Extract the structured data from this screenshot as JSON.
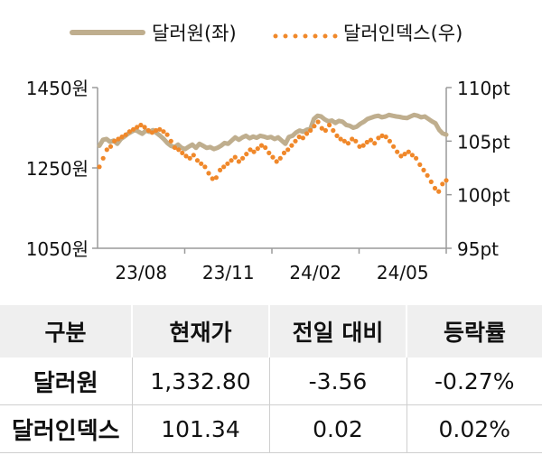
{
  "chart_data": {
    "type": "line",
    "x_ticks": [
      "23/08",
      "23/11",
      "24/02",
      "24/05"
    ],
    "y_left": {
      "ticks": [
        "1450원",
        "1250원",
        "1050원"
      ],
      "range": [
        1050,
        1450
      ]
    },
    "y_right": {
      "ticks": [
        "110pt",
        "105pt",
        "100pt",
        "95pt"
      ],
      "range": [
        95,
        110
      ]
    },
    "legend_position": "top",
    "series": [
      {
        "name": "달러원(좌)",
        "axis": "left",
        "color": "#bfae8e",
        "style": "solid",
        "values": [
          1305,
          1320,
          1322,
          1315,
          1318,
          1310,
          1322,
          1328,
          1335,
          1340,
          1345,
          1340,
          1335,
          1343,
          1340,
          1344,
          1337,
          1330,
          1322,
          1312,
          1305,
          1302,
          1308,
          1300,
          1297,
          1303,
          1308,
          1300,
          1310,
          1305,
          1300,
          1302,
          1297,
          1300,
          1305,
          1312,
          1310,
          1318,
          1326,
          1320,
          1326,
          1330,
          1324,
          1328,
          1325,
          1330,
          1328,
          1325,
          1327,
          1322,
          1326,
          1318,
          1310,
          1327,
          1330,
          1338,
          1343,
          1340,
          1345,
          1347,
          1372,
          1380,
          1378,
          1371,
          1366,
          1368,
          1362,
          1367,
          1365,
          1357,
          1355,
          1350,
          1353,
          1360,
          1365,
          1372,
          1375,
          1378,
          1380,
          1376,
          1378,
          1382,
          1380,
          1378,
          1377,
          1375,
          1374,
          1378,
          1382,
          1380,
          1376,
          1378,
          1372,
          1366,
          1361,
          1345,
          1336,
          1332.8
        ]
      },
      {
        "name": "달러인덱스(우)",
        "axis": "right",
        "color": "#f0882a",
        "style": "dotted",
        "values": [
          102.6,
          103.4,
          104.2,
          104.5,
          105.0,
          105.2,
          105.4,
          105.6,
          105.9,
          106.1,
          106.3,
          106.5,
          106.3,
          106.0,
          105.8,
          106.0,
          106.1,
          105.9,
          105.6,
          105.0,
          104.4,
          104.2,
          103.9,
          103.6,
          103.4,
          103.7,
          103.2,
          102.9,
          102.6,
          102.0,
          101.5,
          101.6,
          102.3,
          102.6,
          102.9,
          103.2,
          103.5,
          103.1,
          103.4,
          103.8,
          104.2,
          104.0,
          104.3,
          104.6,
          104.4,
          103.9,
          103.5,
          103.1,
          103.4,
          103.9,
          104.2,
          104.6,
          105.0,
          105.4,
          105.3,
          105.7,
          106.0,
          106.4,
          106.8,
          106.2,
          106.0,
          106.5,
          106.0,
          105.5,
          105.2,
          105.0,
          104.8,
          105.2,
          105.0,
          104.5,
          104.6,
          104.9,
          105.1,
          104.8,
          105.3,
          105.5,
          105.4,
          105.0,
          104.5,
          104.0,
          103.6,
          103.8,
          104.0,
          103.7,
          103.4,
          102.8,
          102.3,
          101.8,
          101.2,
          100.6,
          100.3,
          101.0,
          101.34
        ]
      }
    ]
  },
  "table": {
    "headers": [
      "구분",
      "현재가",
      "전일 대비",
      "등락률"
    ],
    "rows": [
      [
        "달러원",
        "1,332.80",
        "-3.56",
        "-0.27%"
      ],
      [
        "달러인덱스",
        "101.34",
        "0.02",
        "0.02%"
      ]
    ]
  }
}
